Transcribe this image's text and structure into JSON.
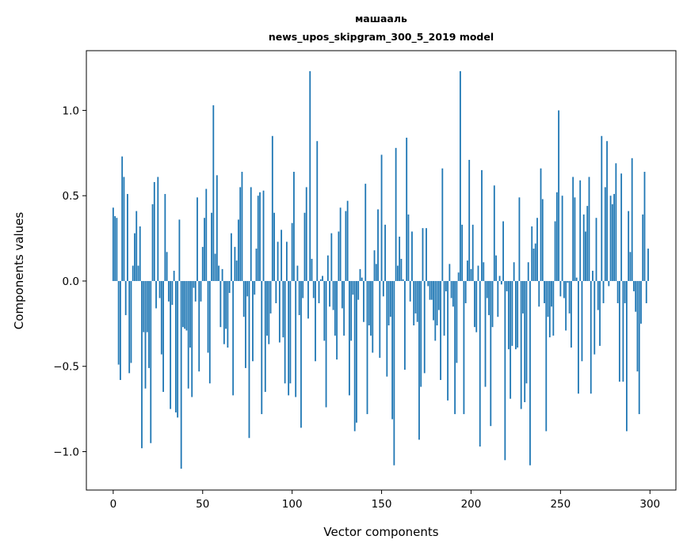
{
  "chart_data": {
    "type": "bar",
    "title": [
      "машааль",
      "news_upos_skipgram_300_5_2019 model"
    ],
    "xlabel": "Vector components",
    "ylabel": "Components values",
    "xlim": [
      -15,
      314.5
    ],
    "ylim": [
      -1.225,
      1.35
    ],
    "xticks": [
      0,
      50,
      100,
      150,
      200,
      250,
      300
    ],
    "xtick_labels": [
      "0",
      "50",
      "100",
      "150",
      "200",
      "250",
      "300"
    ],
    "yticks": [
      1.0,
      0.5,
      0.0,
      -0.5,
      -1.0
    ],
    "ytick_labels": [
      "1.0",
      "0.5",
      "0.0",
      "−0.5",
      "−1.0"
    ],
    "grid": false,
    "bar_color": "#1f77b4",
    "values": [
      0.43,
      0.38,
      0.37,
      -0.49,
      -0.58,
      0.73,
      0.61,
      -0.2,
      0.51,
      -0.54,
      -0.48,
      0.09,
      0.28,
      0.41,
      0.09,
      0.32,
      -0.98,
      -0.3,
      -0.63,
      -0.3,
      -0.51,
      -0.95,
      0.45,
      0.58,
      -0.16,
      0.61,
      -0.1,
      -0.43,
      -0.65,
      0.51,
      0.17,
      -0.12,
      -0.75,
      -0.14,
      0.06,
      -0.77,
      -0.8,
      0.36,
      -1.1,
      -0.27,
      -0.28,
      -0.29,
      -0.63,
      -0.39,
      -0.68,
      -0.04,
      -0.12,
      0.49,
      -0.53,
      -0.12,
      0.2,
      0.37,
      0.54,
      -0.42,
      -0.6,
      0.4,
      1.03,
      0.16,
      0.62,
      0.09,
      -0.27,
      0.07,
      -0.37,
      -0.28,
      -0.39,
      -0.07,
      0.28,
      -0.67,
      0.2,
      0.12,
      0.36,
      0.55,
      0.64,
      -0.21,
      -0.51,
      -0.09,
      -0.92,
      0.55,
      -0.47,
      -0.08,
      0.19,
      0.5,
      0.52,
      -0.78,
      0.53,
      -0.65,
      -0.32,
      -0.37,
      -0.19,
      0.85,
      0.4,
      -0.13,
      0.23,
      -0.36,
      0.3,
      -0.33,
      -0.6,
      0.23,
      -0.67,
      -0.6,
      0.34,
      0.64,
      -0.68,
      0.09,
      -0.2,
      -0.86,
      -0.1,
      0.4,
      0.55,
      -0.22,
      1.23,
      0.13,
      -0.1,
      -0.47,
      0.82,
      -0.13,
      0.01,
      0.03,
      -0.35,
      -0.74,
      0.15,
      -0.15,
      0.28,
      -0.17,
      -0.32,
      -0.46,
      0.29,
      0.43,
      -0.16,
      -0.32,
      0.41,
      0.47,
      -0.67,
      -0.35,
      -0.08,
      -0.88,
      -0.83,
      -0.11,
      0.07,
      0.02,
      -0.24,
      0.57,
      -0.78,
      -0.26,
      -0.32,
      -0.42,
      0.18,
      0.1,
      0.42,
      -0.45,
      0.74,
      -0.09,
      0.33,
      -0.56,
      -0.26,
      -0.21,
      -0.81,
      -1.08,
      0.78,
      0.09,
      0.26,
      0.13,
      0.01,
      -0.52,
      0.84,
      0.39,
      -0.12,
      0.29,
      -0.26,
      -0.19,
      -0.24,
      -0.93,
      -0.62,
      0.31,
      -0.54,
      0.31,
      -0.03,
      -0.11,
      -0.11,
      -0.23,
      -0.35,
      -0.26,
      -0.17,
      -0.58,
      0.66,
      -0.32,
      -0.06,
      -0.7,
      0.1,
      -0.1,
      -0.15,
      -0.78,
      -0.48,
      0.05,
      1.23,
      0.33,
      -0.78,
      -0.13,
      0.12,
      0.71,
      0.07,
      0.33,
      -0.27,
      -0.3,
      0.09,
      -0.97,
      0.65,
      0.11,
      -0.62,
      -0.1,
      -0.2,
      -0.85,
      -0.27,
      0.56,
      0.15,
      -0.21,
      0.03,
      -0.02,
      0.35,
      -1.05,
      -0.06,
      -0.4,
      -0.69,
      -0.38,
      0.11,
      -0.4,
      -0.39,
      0.49,
      -0.75,
      -0.19,
      -0.71,
      -0.6,
      0.11,
      -1.08,
      0.32,
      0.19,
      0.22,
      0.37,
      -0.15,
      0.66,
      0.48,
      -0.13,
      -0.88,
      -0.21,
      -0.33,
      -0.15,
      -0.32,
      0.35,
      0.52,
      1.0,
      -0.09,
      0.5,
      -0.1,
      -0.29,
      -0.01,
      -0.19,
      -0.39,
      0.61,
      0.49,
      0.02,
      -0.66,
      0.59,
      -0.47,
      0.39,
      0.29,
      0.44,
      0.61,
      -0.66,
      0.06,
      -0.43,
      0.37,
      -0.17,
      -0.38,
      0.85,
      -0.13,
      0.55,
      0.82,
      -0.03,
      0.5,
      0.45,
      0.51,
      0.69,
      -0.13,
      -0.59,
      0.63,
      -0.59,
      -0.13,
      -0.88,
      0.41,
      0.17,
      0.72,
      -0.06,
      -0.18,
      -0.53,
      -0.78,
      -0.25,
      0.39,
      0.64,
      -0.13,
      0.19
    ]
  }
}
